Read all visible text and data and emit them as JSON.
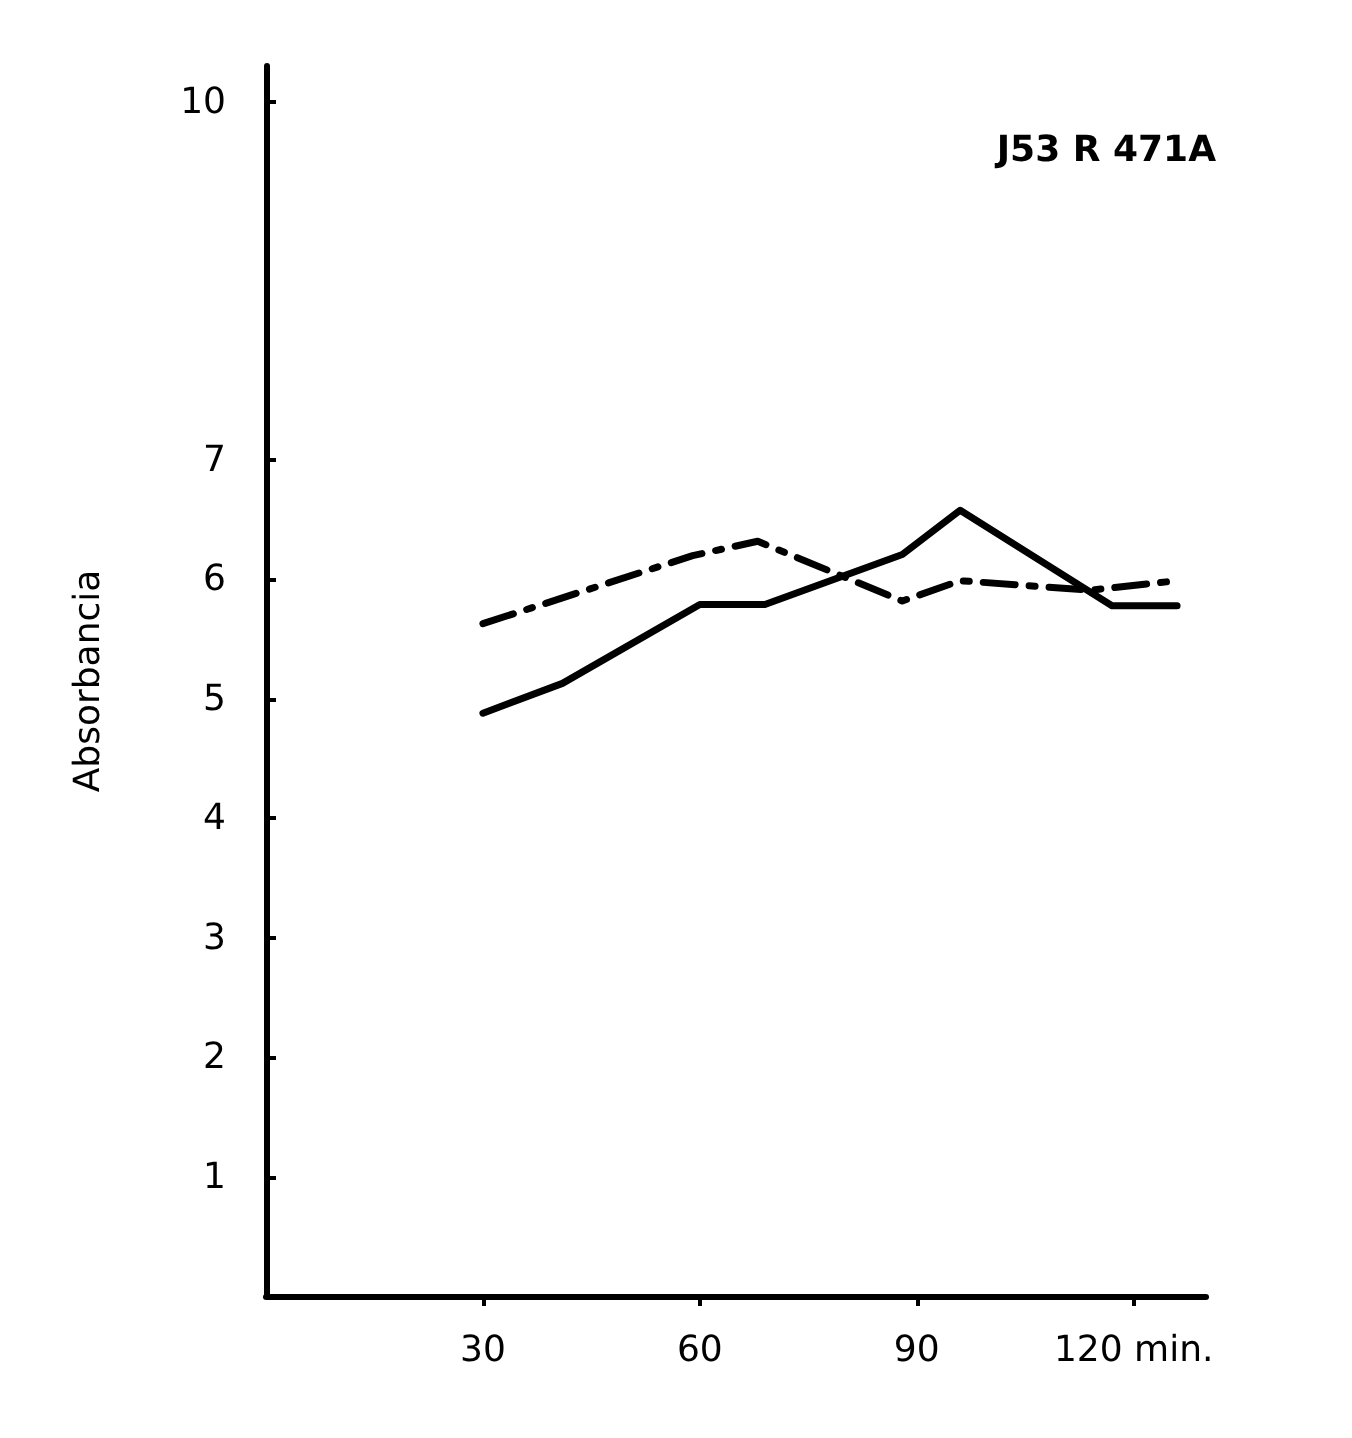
{
  "chart_data": {
    "type": "line",
    "ylabel": "Absorbancia",
    "annotations": [
      "J53 R 471A"
    ],
    "xlim": [
      0,
      130
    ],
    "xticks": [
      30,
      60,
      90,
      {
        "value": 120,
        "label": "120 min."
      }
    ],
    "ylim": [
      0,
      10.3
    ],
    "yticks": [
      1,
      2,
      3,
      4,
      5,
      6,
      7,
      10
    ],
    "grid": false,
    "marker": "none",
    "series": [
      {
        "color": "#000000",
        "line_style": "solid",
        "x": [
          30,
          41,
          60,
          69,
          88,
          96,
          117,
          126
        ],
        "values": [
          4.88,
          5.13,
          5.79,
          5.79,
          6.21,
          6.58,
          5.78,
          5.78
        ]
      },
      {
        "color": "#000000",
        "line_style": "dashed",
        "x": [
          30,
          59,
          68,
          88,
          96,
          114,
          126
        ],
        "values": [
          5.63,
          6.2,
          6.32,
          5.82,
          5.99,
          5.91,
          5.99
        ]
      }
    ]
  }
}
